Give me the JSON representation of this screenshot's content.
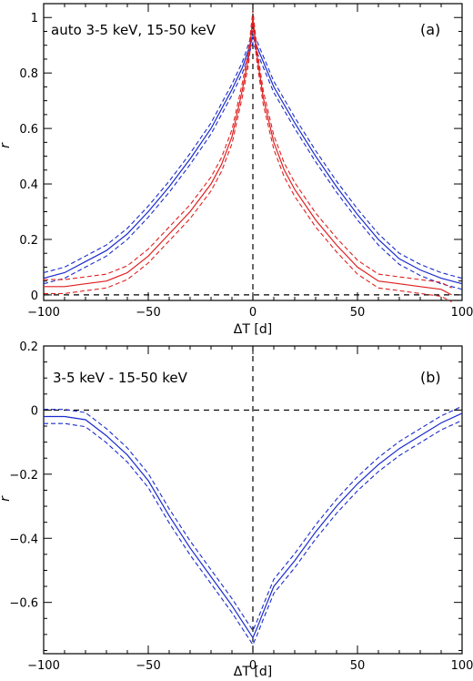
{
  "colors": {
    "blue": "#1a2bcc",
    "red": "#e02020"
  },
  "chart_data": [
    {
      "type": "line",
      "annotation": "auto 3-5 keV, 15-50 keV",
      "panel_label": "(a)",
      "xlabel": "ΔT [d]",
      "ylabel": "r",
      "xlim": [
        -100,
        100
      ],
      "ylim": [
        -0.02,
        1.05
      ],
      "xticks": [
        -100,
        -50,
        0,
        50,
        100
      ],
      "yticks": [
        0,
        0.2,
        0.4,
        0.6,
        0.8,
        1
      ],
      "ytick_labels": [
        "0",
        "0.2",
        "0.4",
        "0.6",
        "0.8",
        "1"
      ],
      "xtick_labels": [
        "−100",
        "−50",
        "0",
        "50",
        "100"
      ],
      "reference_lines": {
        "horizontal": 0,
        "vertical": 0
      },
      "series": [
        {
          "color": "blue",
          "x": [
            -100,
            -90,
            -80,
            -70,
            -60,
            -50,
            -40,
            -30,
            -20,
            -10,
            -5,
            0,
            5,
            10,
            20,
            30,
            40,
            50,
            60,
            70,
            80,
            90,
            100
          ],
          "values": [
            0.06,
            0.08,
            0.12,
            0.16,
            0.22,
            0.3,
            0.39,
            0.49,
            0.6,
            0.74,
            0.82,
            0.93,
            0.84,
            0.75,
            0.62,
            0.5,
            0.39,
            0.29,
            0.2,
            0.13,
            0.09,
            0.06,
            0.04
          ],
          "band": 0.02
        },
        {
          "color": "red",
          "x": [
            -100,
            -90,
            -80,
            -70,
            -60,
            -50,
            -40,
            -30,
            -20,
            -15,
            -10,
            -5,
            -2,
            0,
            2,
            5,
            10,
            15,
            20,
            30,
            40,
            50,
            60,
            70,
            80,
            90,
            95
          ],
          "values": [
            0.03,
            0.03,
            0.04,
            0.05,
            0.08,
            0.14,
            0.22,
            0.3,
            0.4,
            0.47,
            0.57,
            0.74,
            0.86,
            1.0,
            0.86,
            0.71,
            0.55,
            0.45,
            0.38,
            0.27,
            0.18,
            0.1,
            0.05,
            0.04,
            0.03,
            0.02,
            0.0
          ],
          "band": 0.025
        }
      ]
    },
    {
      "type": "line",
      "annotation": "3-5 keV - 15-50 keV",
      "panel_label": "(b)",
      "xlabel": "ΔT [d]",
      "ylabel": "r",
      "xlim": [
        -100,
        100
      ],
      "ylim": [
        -0.76,
        0.2
      ],
      "xticks": [
        -100,
        -50,
        0,
        50,
        100
      ],
      "yticks": [
        -0.6,
        -0.4,
        -0.2,
        0,
        0.2
      ],
      "ytick_labels": [
        "−0.6",
        "−0.4",
        "−0.2",
        "0",
        "0.2"
      ],
      "xtick_labels": [
        "−100",
        "−50",
        "0",
        "50",
        "100"
      ],
      "reference_lines": {
        "horizontal": 0,
        "vertical": 0
      },
      "series": [
        {
          "color": "blue",
          "x": [
            -100,
            -90,
            -80,
            -70,
            -60,
            -50,
            -40,
            -30,
            -20,
            -10,
            -5,
            -2,
            0,
            2,
            5,
            10,
            20,
            30,
            40,
            50,
            60,
            70,
            80,
            90,
            100
          ],
          "values": [
            -0.02,
            -0.02,
            -0.03,
            -0.08,
            -0.14,
            -0.22,
            -0.33,
            -0.43,
            -0.52,
            -0.61,
            -0.66,
            -0.69,
            -0.71,
            -0.68,
            -0.63,
            -0.55,
            -0.47,
            -0.38,
            -0.3,
            -0.23,
            -0.17,
            -0.12,
            -0.08,
            -0.04,
            -0.01
          ],
          "band": 0.022
        }
      ]
    }
  ]
}
